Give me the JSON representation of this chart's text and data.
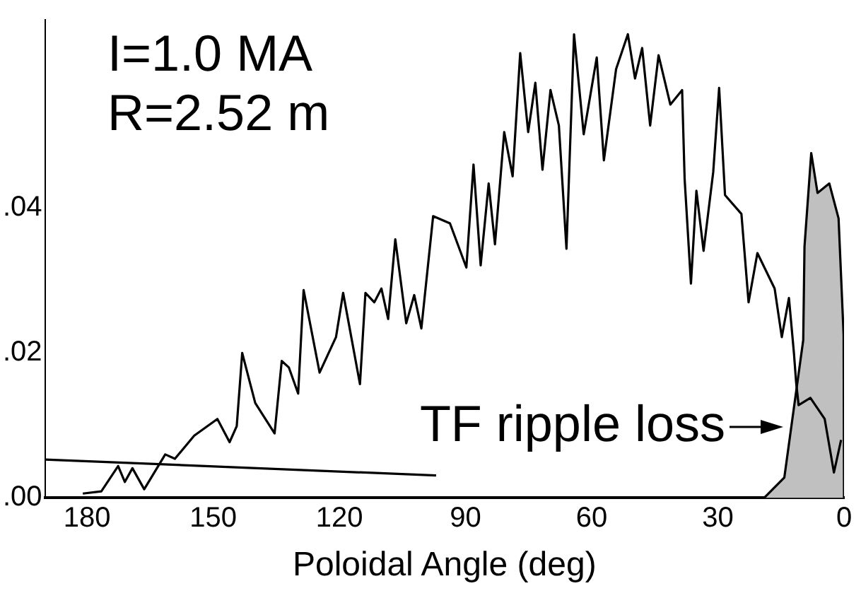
{
  "chart_data": {
    "type": "line",
    "xlabel": "Poloidal Angle (deg)",
    "xlim": [
      190,
      0
    ],
    "xticks": [
      180,
      150,
      120,
      90,
      60,
      30,
      0
    ],
    "ylim": [
      0,
      0.066
    ],
    "yticks": [
      {
        "value": 0,
        "label": ".00"
      },
      {
        "value": 0.02,
        "label": ".02"
      },
      {
        "value": 0.04,
        "label": ".04"
      }
    ],
    "grid": false,
    "legend": false,
    "marker": "none",
    "line_style": "solid",
    "annotations": [
      "I=1.0 MA",
      "R=2.52 m",
      "TF ripple loss"
    ],
    "series": [
      {
        "color": "#000000",
        "x": [
          181,
          176.6,
          172.6,
          171,
          169.2,
          166.4,
          161.4,
          159.1,
          154.5,
          149,
          146.1,
          144.4,
          143.1,
          140,
          135.4,
          133.7,
          132,
          129.8,
          128.5,
          124.7,
          120.8,
          119.1,
          115.1,
          113.8,
          111.7,
          110,
          108.4,
          106.7,
          104.1,
          102.2,
          100.5,
          97.7,
          93.7,
          89.8,
          88.1,
          86.4,
          84.5,
          83,
          80.8,
          78.8,
          77,
          75.1,
          73.4,
          71.7,
          69.8,
          67.8,
          66,
          64.2,
          61.9,
          58.8,
          57.1,
          54.2,
          51.4,
          49.7,
          48,
          46.1,
          44.1,
          41.3,
          38.5,
          37.9,
          36.4,
          35.1,
          33.4,
          31.1,
          29.7,
          28.3,
          24.4,
          22.7,
          20.6,
          16.5,
          14.8,
          13.1,
          11.9,
          11.4,
          10.8,
          8,
          4.6,
          2.4,
          0.7
        ],
        "values": [
          0.0006,
          0.0009,
          0.0044,
          0.0022,
          0.0041,
          0.0012,
          0.006,
          0.0054,
          0.0086,
          0.0109,
          0.0077,
          0.0099,
          0.02,
          0.0131,
          0.0089,
          0.0189,
          0.018,
          0.0144,
          0.0287,
          0.0173,
          0.0222,
          0.0283,
          0.0157,
          0.0283,
          0.027,
          0.0289,
          0.0247,
          0.0357,
          0.0241,
          0.028,
          0.0234,
          0.0389,
          0.0379,
          0.0318,
          0.046,
          0.0321,
          0.0434,
          0.035,
          0.0505,
          0.0444,
          0.0614,
          0.0505,
          0.0573,
          0.0453,
          0.0563,
          0.0514,
          0.0344,
          0.064,
          0.0502,
          0.0608,
          0.0466,
          0.0592,
          0.064,
          0.0579,
          0.0621,
          0.0514,
          0.0611,
          0.0543,
          0.0563,
          0.044,
          0.0296,
          0.0424,
          0.0341,
          0.045,
          0.0566,
          0.0418,
          0.0392,
          0.027,
          0.0338,
          0.0289,
          0.0222,
          0.0276,
          0.0199,
          0.016,
          0.0128,
          0.0138,
          0.0109,
          0.0035,
          0.008
        ]
      },
      {
        "color": "#000000",
        "x": [
          190,
          97
        ],
        "values": [
          0.0053,
          0.0031
        ]
      },
      {
        "type": "area",
        "color": "#c0c0c0",
        "x": [
          19,
          14.2,
          9.7,
          9.4,
          7.8,
          6.3,
          3.5,
          1.3,
          0.1,
          0
        ],
        "values": [
          0,
          0.0028,
          0.0218,
          0.0347,
          0.0476,
          0.0421,
          0.0434,
          0.0386,
          0.0225,
          0
        ]
      }
    ]
  }
}
